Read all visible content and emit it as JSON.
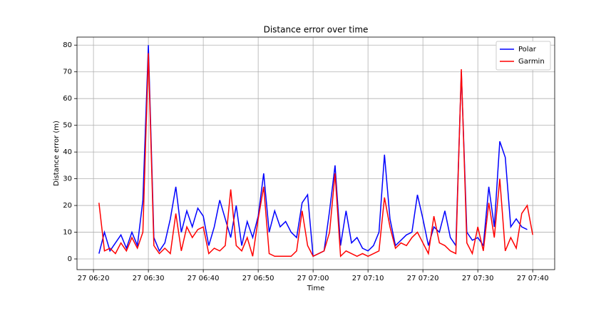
{
  "chart_data": {
    "type": "line",
    "title": "Distance error over time",
    "xlabel": "Time",
    "ylabel": "Distance error (m)",
    "xlim": [
      "27 06:17",
      "27 07:44"
    ],
    "xticks": [
      "27 06:20",
      "27 06:30",
      "27 06:40",
      "27 06:50",
      "27 07:00",
      "27 07:10",
      "27 07:20",
      "27 07:30",
      "27 07:40"
    ],
    "ylim": [
      -4,
      83
    ],
    "yticks": [
      0,
      10,
      20,
      30,
      40,
      50,
      60,
      70,
      80
    ],
    "grid": true,
    "legend": "upper right",
    "series": [
      {
        "name": "Polar",
        "color": "#0000ff",
        "x": [
          "27 06:21",
          "27 06:22",
          "27 06:23",
          "27 06:24",
          "27 06:25",
          "27 06:26",
          "27 06:27",
          "27 06:28",
          "27 06:29",
          "27 06:30",
          "27 06:31",
          "27 06:32",
          "27 06:33",
          "27 06:34",
          "27 06:35",
          "27 06:36",
          "27 06:37",
          "27 06:38",
          "27 06:39",
          "27 06:40",
          "27 06:41",
          "27 06:42",
          "27 06:43",
          "27 06:44",
          "27 06:45",
          "27 06:46",
          "27 06:47",
          "27 06:48",
          "27 06:49",
          "27 06:50",
          "27 06:51",
          "27 06:52",
          "27 06:53",
          "27 06:54",
          "27 06:55",
          "27 06:56",
          "27 06:57",
          "27 06:58",
          "27 06:59",
          "27 07:00",
          "27 07:01",
          "27 07:02",
          "27 07:03",
          "27 07:04",
          "27 07:05",
          "27 07:06",
          "27 07:07",
          "27 07:08",
          "27 07:09",
          "27 07:10",
          "27 07:11",
          "27 07:12",
          "27 07:13",
          "27 07:14",
          "27 07:15",
          "27 07:16",
          "27 07:17",
          "27 07:18",
          "27 07:19",
          "27 07:20",
          "27 07:21",
          "27 07:22",
          "27 07:23",
          "27 07:24",
          "27 07:25",
          "27 07:26",
          "27 07:27",
          "27 07:28",
          "27 07:29",
          "27 07:30",
          "27 07:31",
          "27 07:32",
          "27 07:33",
          "27 07:34",
          "27 07:35",
          "27 07:36",
          "27 07:37",
          "27 07:38",
          "27 07:39"
        ],
        "values": [
          2,
          10,
          3,
          6,
          9,
          4,
          10,
          5,
          22,
          80,
          8,
          3,
          6,
          15,
          27,
          10,
          18,
          12,
          19,
          16,
          5,
          12,
          22,
          15,
          8,
          20,
          5,
          14,
          8,
          16,
          32,
          10,
          18,
          12,
          14,
          10,
          8,
          21,
          24,
          1,
          2,
          3,
          18,
          35,
          5,
          18,
          6,
          8,
          4,
          3,
          5,
          10,
          39,
          15,
          5,
          7,
          9,
          10,
          24,
          15,
          5,
          12,
          10,
          18,
          8,
          5,
          70,
          10,
          7,
          8,
          5,
          27,
          12,
          44,
          38,
          12,
          15,
          12,
          11
        ]
      },
      {
        "name": "Garmin",
        "color": "#ff0000",
        "x": [
          "27 06:21",
          "27 06:22",
          "27 06:23",
          "27 06:24",
          "27 06:25",
          "27 06:26",
          "27 06:27",
          "27 06:28",
          "27 06:29",
          "27 06:30",
          "27 06:31",
          "27 06:32",
          "27 06:33",
          "27 06:34",
          "27 06:35",
          "27 06:36",
          "27 06:37",
          "27 06:38",
          "27 06:39",
          "27 06:40",
          "27 06:41",
          "27 06:42",
          "27 06:43",
          "27 06:44",
          "27 06:45",
          "27 06:46",
          "27 06:47",
          "27 06:48",
          "27 06:49",
          "27 06:50",
          "27 06:51",
          "27 06:52",
          "27 06:53",
          "27 06:54",
          "27 06:55",
          "27 06:56",
          "27 06:57",
          "27 06:58",
          "27 06:59",
          "27 07:00",
          "27 07:01",
          "27 07:02",
          "27 07:03",
          "27 07:04",
          "27 07:05",
          "27 07:06",
          "27 07:07",
          "27 07:08",
          "27 07:09",
          "27 07:10",
          "27 07:11",
          "27 07:12",
          "27 07:13",
          "27 07:14",
          "27 07:15",
          "27 07:16",
          "27 07:17",
          "27 07:18",
          "27 07:19",
          "27 07:20",
          "27 07:21",
          "27 07:22",
          "27 07:23",
          "27 07:24",
          "27 07:25",
          "27 07:26",
          "27 07:27",
          "27 07:28",
          "27 07:29",
          "27 07:30",
          "27 07:31",
          "27 07:32",
          "27 07:33",
          "27 07:34",
          "27 07:35",
          "27 07:36",
          "27 07:37",
          "27 07:38",
          "27 07:39",
          "27 07:40"
        ],
        "values": [
          21,
          3,
          4,
          2,
          6,
          3,
          8,
          4,
          10,
          77,
          5,
          2,
          4,
          2,
          17,
          3,
          12,
          8,
          11,
          12,
          2,
          4,
          3,
          5,
          26,
          5,
          3,
          8,
          1,
          15,
          27,
          2,
          1,
          1,
          1,
          1,
          3,
          18,
          5,
          1,
          2,
          3,
          10,
          32,
          1,
          3,
          2,
          1,
          2,
          1,
          2,
          3,
          23,
          12,
          4,
          6,
          5,
          8,
          10,
          6,
          2,
          16,
          6,
          5,
          3,
          2,
          71,
          6,
          2,
          12,
          3,
          21,
          8,
          30,
          3,
          8,
          4,
          17,
          20,
          9
        ]
      }
    ]
  }
}
